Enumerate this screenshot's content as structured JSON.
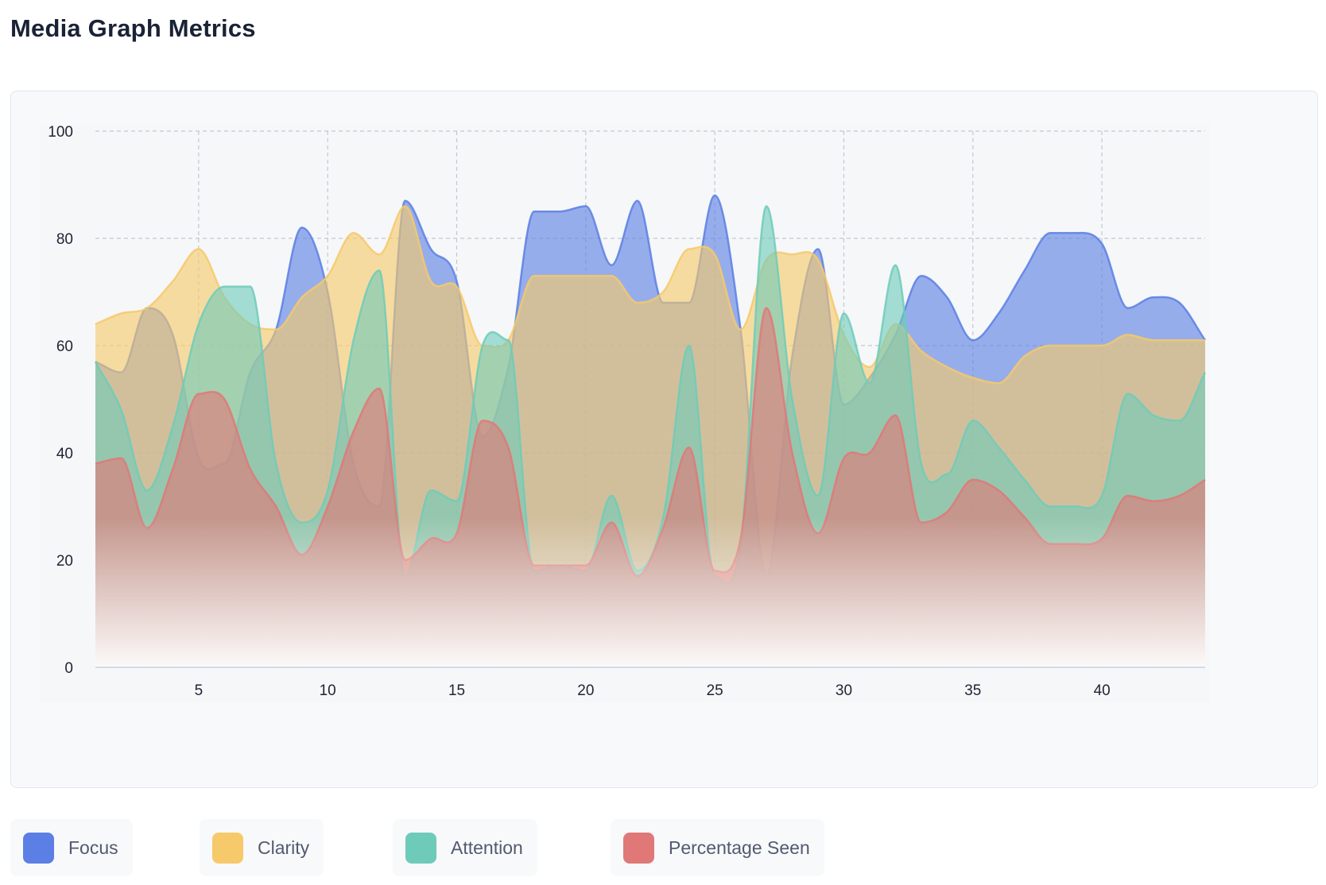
{
  "page": {
    "title": "Media Graph Metrics"
  },
  "chart_data": {
    "type": "area",
    "title": "Media Graph Metrics",
    "xlabel": "",
    "ylabel": "",
    "xlim": [
      1,
      44
    ],
    "ylim": [
      0,
      100
    ],
    "x_ticks": [
      5,
      10,
      15,
      20,
      25,
      30,
      35,
      40
    ],
    "y_ticks": [
      0,
      20,
      40,
      60,
      80,
      100
    ],
    "grid": true,
    "legend_position": "bottom",
    "x": [
      1,
      2,
      3,
      4,
      5,
      6,
      7,
      8,
      9,
      10,
      11,
      12,
      13,
      14,
      15,
      16,
      17,
      18,
      19,
      20,
      21,
      22,
      23,
      24,
      25,
      26,
      27,
      28,
      29,
      30,
      31,
      32,
      33,
      34,
      35,
      36,
      37,
      38,
      39,
      40,
      41,
      42,
      43,
      44
    ],
    "series": [
      {
        "name": "Focus",
        "color": "#5b7fe4",
        "values": [
          57,
          55,
          67,
          62,
          39,
          38,
          55,
          63,
          82,
          70,
          38,
          30,
          87,
          78,
          72,
          43,
          56,
          85,
          85,
          86,
          75,
          87,
          68,
          68,
          88,
          63,
          17,
          58,
          78,
          49,
          54,
          62,
          73,
          69,
          61,
          66,
          74,
          81,
          81,
          79,
          67,
          69,
          68,
          61
        ]
      },
      {
        "name": "Clarity",
        "color": "#f6c96a",
        "values": [
          64,
          66,
          67,
          72,
          78,
          69,
          64,
          63,
          69,
          73,
          81,
          77,
          86,
          72,
          71,
          60,
          61,
          73,
          73,
          73,
          73,
          68,
          70,
          78,
          77,
          63,
          76,
          77,
          76,
          62,
          56,
          64,
          59,
          56,
          54,
          53,
          58,
          60,
          60,
          60,
          62,
          61,
          61,
          61
        ]
      },
      {
        "name": "Attention",
        "color": "#6fcbb9",
        "values": [
          57,
          48,
          33,
          45,
          64,
          71,
          71,
          38,
          27,
          33,
          61,
          74,
          17,
          33,
          31,
          60,
          61,
          18,
          19,
          18,
          32,
          18,
          28,
          60,
          17,
          23,
          86,
          50,
          32,
          66,
          53,
          75,
          38,
          36,
          46,
          41,
          35,
          30,
          30,
          32,
          51,
          47,
          46,
          55
        ]
      },
      {
        "name": "Percentage Seen",
        "color": "#e07878",
        "values": [
          38,
          39,
          26,
          37,
          51,
          50,
          37,
          30,
          21,
          30,
          44,
          52,
          20,
          24,
          25,
          46,
          41,
          19,
          19,
          19,
          27,
          17,
          26,
          41,
          18,
          24,
          67,
          40,
          25,
          39,
          40,
          47,
          27,
          29,
          35,
          33,
          28,
          23,
          23,
          24,
          32,
          31,
          32,
          35
        ]
      }
    ]
  }
}
